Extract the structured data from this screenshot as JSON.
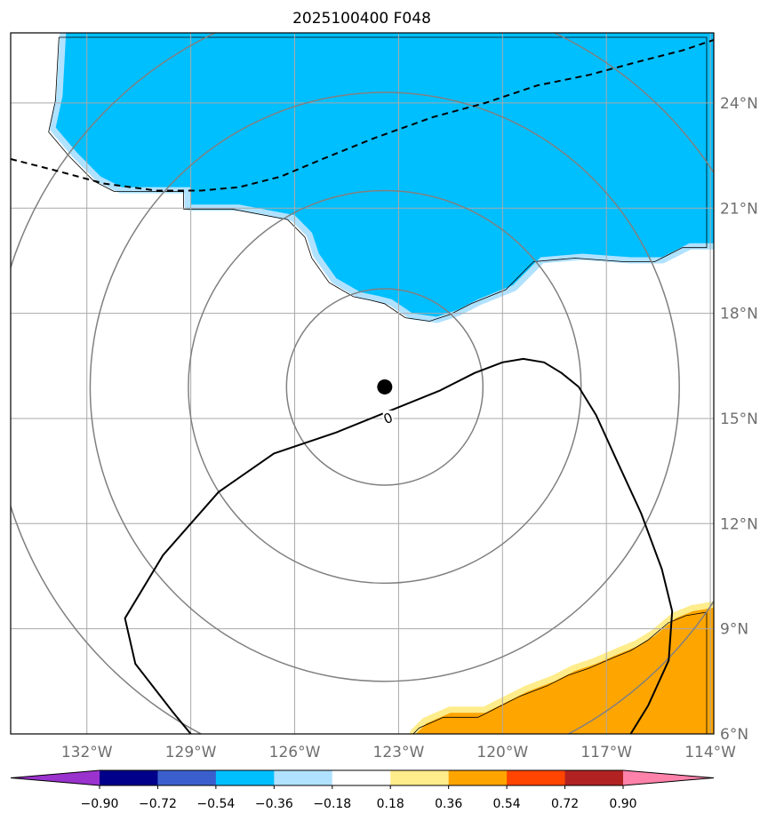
{
  "chart_data": {
    "type": "map-contour",
    "title": "2025100400 F048",
    "x_axis": {
      "unit": "degrees longitude (W negative)",
      "range": [
        -134.2,
        -113.9
      ],
      "ticks": [
        -132,
        -129,
        -126,
        -123,
        -120,
        -117,
        -114
      ],
      "tick_labels": [
        "132°W",
        "129°W",
        "126°W",
        "123°W",
        "120°W",
        "117°W",
        "114°W"
      ]
    },
    "y_axis": {
      "unit": "degrees latitude",
      "range": [
        6,
        26
      ],
      "ticks": [
        6,
        9,
        12,
        15,
        18,
        21,
        24
      ],
      "tick_labels": [
        "6°N",
        "9°N",
        "12°N",
        "15°N",
        "18°N",
        "21°N",
        "24°N"
      ]
    },
    "grid": true,
    "storm_center": {
      "lon": -123.4,
      "lat": 15.9
    },
    "range_rings_degrees": [
      2.8,
      5.6,
      8.4,
      11.2
    ],
    "contours": [
      {
        "name": "zero-line",
        "value": 0,
        "label": "0",
        "label_position": {
          "lon": -123.3,
          "lat": 15.0
        },
        "style": "solid",
        "points": [
          [
            -124.8,
            14.6
          ],
          [
            -126.6,
            14.0
          ],
          [
            -128.2,
            12.9
          ],
          [
            -129.8,
            11.1
          ],
          [
            -130.9,
            9.3
          ],
          [
            -130.6,
            8.0
          ],
          [
            -129.5,
            6.6
          ],
          [
            -129.0,
            6.0
          ],
          [
            null,
            null
          ],
          [
            -124.8,
            14.6
          ],
          [
            -121.8,
            15.8
          ],
          [
            -120.8,
            16.3
          ],
          [
            -120.0,
            16.6
          ],
          [
            -119.4,
            16.7
          ],
          [
            -118.8,
            16.6
          ],
          [
            -118.3,
            16.3
          ],
          [
            -117.8,
            15.9
          ],
          [
            -117.3,
            15.1
          ],
          [
            -116.7,
            13.8
          ],
          [
            -116.0,
            12.3
          ],
          [
            -115.4,
            10.7
          ],
          [
            -115.1,
            9.5
          ],
          [
            -115.2,
            8.1
          ],
          [
            -115.8,
            6.8
          ],
          [
            -116.3,
            6.0
          ]
        ]
      },
      {
        "name": "dashed-line",
        "style": "dashed",
        "points": [
          [
            -134.2,
            22.4
          ],
          [
            -133.0,
            22.1
          ],
          [
            -131.5,
            21.7
          ],
          [
            -130.0,
            21.5
          ],
          [
            -128.7,
            21.5
          ],
          [
            -127.6,
            21.6
          ],
          [
            -126.4,
            21.9
          ],
          [
            -125.2,
            22.4
          ],
          [
            -123.7,
            23.0
          ],
          [
            -122.0,
            23.6
          ],
          [
            -120.5,
            24.0
          ],
          [
            -119.0,
            24.5
          ],
          [
            -117.5,
            24.8
          ],
          [
            -116.0,
            25.2
          ],
          [
            -114.8,
            25.5
          ],
          [
            -113.9,
            25.8
          ]
        ]
      }
    ],
    "shaded_regions": [
      {
        "name": "negative-region",
        "range": "-0.54 to -0.36",
        "color": "#00bfff",
        "points": [
          [
            -132.6,
            26.0
          ],
          [
            -132.7,
            24.2
          ],
          [
            -132.9,
            23.3
          ],
          [
            -132.3,
            22.6
          ],
          [
            -131.6,
            21.9
          ],
          [
            -131.0,
            21.6
          ],
          [
            -129.0,
            21.6
          ],
          [
            -129.0,
            21.1
          ],
          [
            -127.6,
            21.1
          ],
          [
            -126.0,
            20.8
          ],
          [
            -125.5,
            20.3
          ],
          [
            -125.3,
            19.7
          ],
          [
            -124.8,
            19.0
          ],
          [
            -124.1,
            18.6
          ],
          [
            -123.6,
            18.5
          ],
          [
            -123.2,
            18.4
          ],
          [
            -122.6,
            18.0
          ],
          [
            -121.9,
            17.9
          ],
          [
            -121.3,
            18.1
          ],
          [
            -120.7,
            18.4
          ],
          [
            -119.7,
            18.8
          ],
          [
            -119.3,
            19.2
          ],
          [
            -118.9,
            19.6
          ],
          [
            -117.7,
            19.7
          ],
          [
            -116.3,
            19.6
          ],
          [
            -115.4,
            19.6
          ],
          [
            -115.0,
            19.8
          ],
          [
            -114.6,
            20.0
          ],
          [
            -113.9,
            20.0
          ],
          [
            -113.9,
            26.0
          ]
        ]
      },
      {
        "name": "positive-region",
        "range": "0.36 to 0.54",
        "color": "#ffa500",
        "points": [
          [
            -122.5,
            6.0
          ],
          [
            -122.2,
            6.3
          ],
          [
            -121.5,
            6.6
          ],
          [
            -120.5,
            6.6
          ],
          [
            -119.9,
            6.9
          ],
          [
            -119.3,
            7.2
          ],
          [
            -118.5,
            7.5
          ],
          [
            -117.9,
            7.8
          ],
          [
            -117.3,
            8.0
          ],
          [
            -116.6,
            8.3
          ],
          [
            -116.1,
            8.5
          ],
          [
            -115.6,
            8.8
          ],
          [
            -115.0,
            9.3
          ],
          [
            -114.5,
            9.5
          ],
          [
            -113.9,
            9.6
          ],
          [
            -113.9,
            6.0
          ]
        ]
      }
    ],
    "colorbar": {
      "colors": [
        "#9a32cd",
        "#00008b",
        "#3a5fcd",
        "#00bfff",
        "#b0e2ff",
        "#ffffff",
        "#ffec8b",
        "#ffa500",
        "#ff4500",
        "#b22222",
        "#ff82ab"
      ],
      "tick_values": [
        -0.9,
        -0.72,
        -0.54,
        -0.36,
        -0.18,
        0.18,
        0.36,
        0.54,
        0.72,
        0.9
      ],
      "tick_labels": [
        "−0.90",
        "−0.72",
        "−0.54",
        "−0.36",
        "−0.18",
        "0.18",
        "0.36",
        "0.54",
        "0.72",
        "0.90"
      ],
      "extend": "both"
    }
  }
}
